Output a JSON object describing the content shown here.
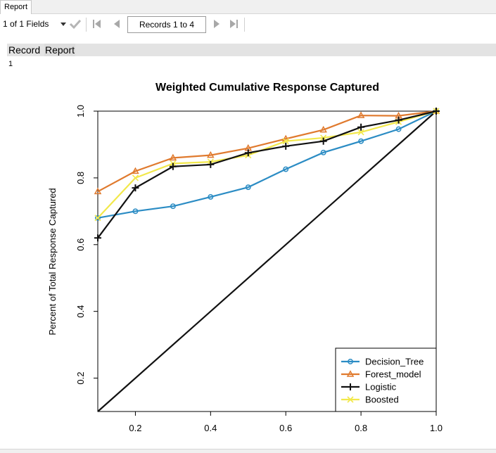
{
  "tab": {
    "label": "Report"
  },
  "toolbar": {
    "fields_label": "1 of 1 Fields",
    "records_label": "Records 1 to 4"
  },
  "grid": {
    "columns": [
      "Record",
      "Report"
    ],
    "row_number": "1"
  },
  "icons": {
    "dropdown": "chevron-down-icon",
    "apply": "checkmark-icon",
    "first": "first-page-icon",
    "prev": "previous-page-icon",
    "next": "next-page-icon",
    "last": "last-page-icon"
  },
  "chart_data": {
    "type": "line",
    "title": "Weighted Cumulative Response Captured",
    "xlabel": "",
    "ylabel": "Percent of Total Response Captured",
    "xlim": [
      0.1,
      1.0
    ],
    "ylim": [
      0.1,
      1.0
    ],
    "xticks": [
      "0.2",
      "0.4",
      "0.6",
      "0.8",
      "1.0"
    ],
    "yticks": [
      "0.2",
      "0.4",
      "0.6",
      "0.8",
      "1.0"
    ],
    "legend_position": "bottom-right",
    "grid": false,
    "x": [
      0.1,
      0.2,
      0.3,
      0.4,
      0.5,
      0.6,
      0.7,
      0.8,
      0.9,
      1.0
    ],
    "series": [
      {
        "name": "Decision_Tree",
        "color": "#2b8cc4",
        "marker": "circle",
        "values": [
          0.68,
          0.7,
          0.715,
          0.743,
          0.772,
          0.826,
          0.876,
          0.91,
          0.946,
          1.0
        ]
      },
      {
        "name": "Forest_model",
        "color": "#e07a2e",
        "marker": "triangle",
        "values": [
          0.759,
          0.82,
          0.86,
          0.868,
          0.889,
          0.917,
          0.944,
          0.987,
          0.986,
          1.0
        ]
      },
      {
        "name": "Logistic",
        "color": "#111111",
        "marker": "plus",
        "values": [
          0.62,
          0.77,
          0.834,
          0.84,
          0.875,
          0.895,
          0.91,
          0.952,
          0.973,
          1.0
        ]
      },
      {
        "name": "Boosted",
        "color": "#f2e84a",
        "marker": "x",
        "values": [
          0.68,
          0.8,
          0.843,
          0.848,
          0.868,
          0.91,
          0.92,
          0.937,
          0.968,
          1.0
        ]
      }
    ],
    "reference_line": {
      "x": [
        0.1,
        1.0
      ],
      "y": [
        0.1,
        1.0
      ],
      "color": "#111111"
    }
  }
}
